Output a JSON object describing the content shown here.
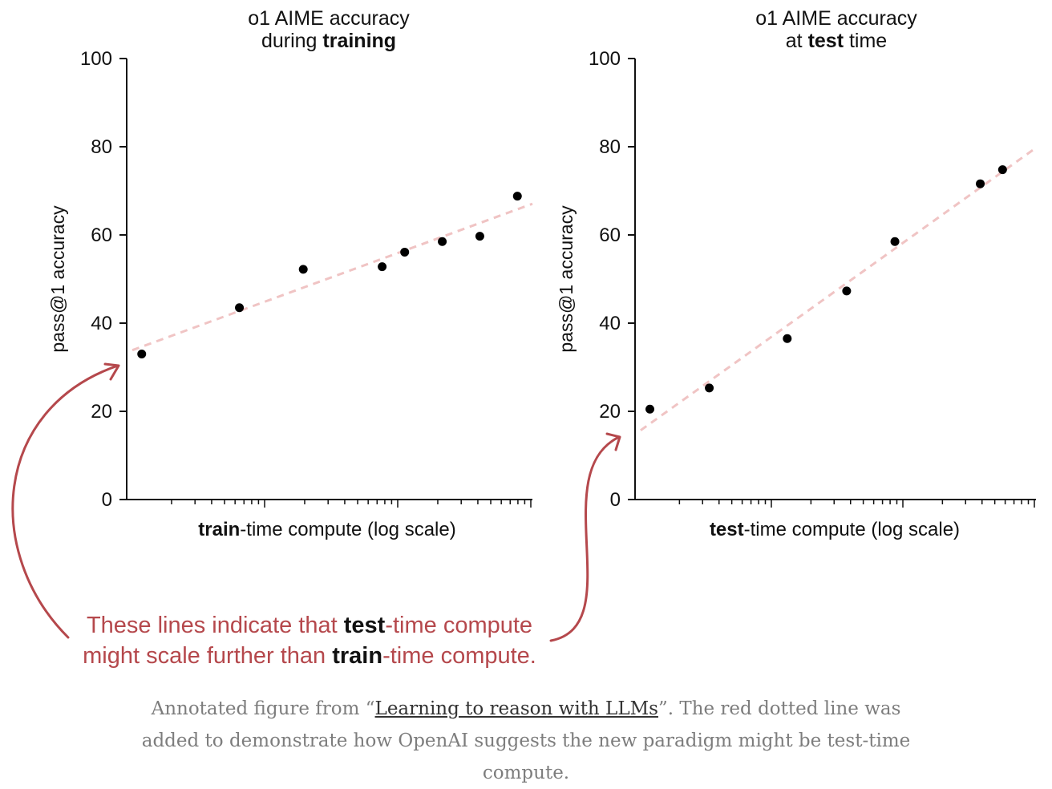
{
  "chart_data": [
    {
      "type": "scatter",
      "title_line1": "o1 AIME accuracy",
      "title_line2_prefix": "during ",
      "title_line2_bold": "training",
      "title_line2_suffix": "",
      "ylabel": "pass@1 accuracy",
      "xlabel_bold": "train",
      "xlabel_rest": "-time compute (log scale)",
      "ylim": [
        0,
        100
      ],
      "yticks": [
        "0",
        "20",
        "40",
        "60",
        "80",
        "100"
      ],
      "x_scale": "log",
      "x": [
        0.04,
        0.3,
        0.47,
        0.68,
        0.74,
        0.84,
        0.94,
        1.04
      ],
      "y": [
        33,
        43.5,
        52.2,
        52.8,
        56.1,
        58.5,
        59.7,
        68.8
      ],
      "trend_color": "#f0c4c4",
      "point_color": "#000000"
    },
    {
      "type": "scatter",
      "title_line1": "o1 AIME accuracy",
      "title_line2_prefix": "at ",
      "title_line2_bold": "test",
      "title_line2_suffix": " time",
      "ylabel": "pass@1 accuracy",
      "xlabel_bold": "test",
      "xlabel_rest": "-time compute (log scale)",
      "ylim": [
        0,
        100
      ],
      "yticks": [
        "0",
        "20",
        "40",
        "60",
        "80",
        "100"
      ],
      "x_scale": "log",
      "x": [
        0.04,
        0.2,
        0.41,
        0.57,
        0.7,
        0.93,
        0.99
      ],
      "y": [
        20.5,
        25.3,
        36.5,
        47.3,
        58.5,
        71.6,
        74.8
      ],
      "trend_color": "#f0c4c4",
      "point_color": "#000000"
    }
  ],
  "annotation": {
    "line1_prefix": "These lines indicate that ",
    "line1_bold": "test",
    "line1_suffix": "-time compute",
    "line2_prefix": "might scale further than ",
    "line2_bold": "train",
    "line2_suffix": "-time compute.",
    "color": "#b5484c"
  },
  "caption": {
    "prefix": "Annotated figure from “",
    "link_text": "Learning to reason with LLMs",
    "suffix": "”. The red dotted line was added to demonstrate how OpenAI suggests the new paradigm might be test-time compute."
  }
}
